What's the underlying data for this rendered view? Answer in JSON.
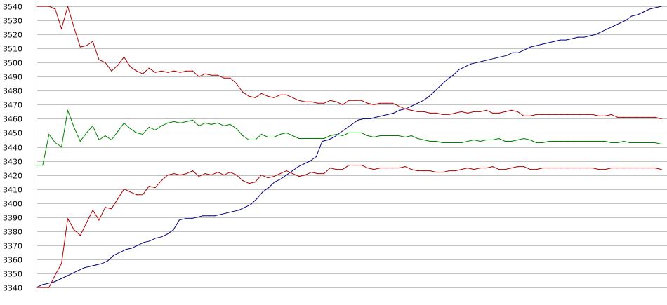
{
  "chart_data": {
    "type": "line",
    "title": "",
    "xlabel": "",
    "ylabel": "",
    "ylim": [
      3340,
      3540
    ],
    "yticks": [
      3340,
      3350,
      3360,
      3370,
      3380,
      3390,
      3400,
      3410,
      3420,
      3430,
      3440,
      3450,
      3460,
      3470,
      3480,
      3490,
      3500,
      3510,
      3520,
      3530,
      3540
    ],
    "grid": true,
    "legend": "none",
    "series": [
      {
        "color": "#000080",
        "values": [
          3340,
          3342,
          3343,
          3344,
          3346,
          3348,
          3350,
          3352,
          3354,
          3355,
          3356,
          3357,
          3359,
          3363,
          3365,
          3367,
          3368,
          3370,
          3372,
          3373,
          3375,
          3376,
          3378,
          3381,
          3388,
          3389,
          3389,
          3390,
          3391,
          3391,
          3391,
          3392,
          3393,
          3394,
          3395,
          3397,
          3399,
          3403,
          3408,
          3411,
          3415,
          3417,
          3420,
          3423,
          3426,
          3428,
          3430,
          3433,
          3444,
          3445,
          3447,
          3450,
          3453,
          3456,
          3459,
          3460,
          3460,
          3461,
          3462,
          3463,
          3464,
          3466,
          3467,
          3469,
          3471,
          3473,
          3476,
          3480,
          3484,
          3488,
          3491,
          3495,
          3497,
          3499,
          3500,
          3501,
          3502,
          3503,
          3504,
          3505,
          3507,
          3507,
          3509,
          3511,
          3512,
          3513,
          3514,
          3515,
          3516,
          3516,
          3517,
          3518,
          3518,
          3519,
          3520,
          3522,
          3524,
          3526,
          3528,
          3530,
          3533,
          3534,
          3536,
          3538,
          3539,
          3540
        ]
      },
      {
        "color": "#aa0000",
        "values": [
          3540,
          3540,
          3540,
          3538,
          3524,
          3540,
          3525,
          3511,
          3512,
          3515,
          3502,
          3500,
          3494,
          3498,
          3504,
          3497,
          3494,
          3492,
          3496,
          3493,
          3494,
          3493,
          3494,
          3493,
          3494,
          3494,
          3490,
          3492,
          3491,
          3491,
          3489,
          3489,
          3485,
          3479,
          3476,
          3475,
          3478,
          3476,
          3475,
          3477,
          3477,
          3475,
          3473,
          3472,
          3472,
          3471,
          3471,
          3473,
          3472,
          3470,
          3473,
          3473,
          3473,
          3471,
          3470,
          3471,
          3471,
          3471,
          3469,
          3467,
          3466,
          3465,
          3465,
          3464,
          3464,
          3463,
          3463,
          3464,
          3465,
          3464,
          3465,
          3465,
          3466,
          3464,
          3464,
          3465,
          3466,
          3465,
          3462,
          3462,
          3463,
          3463,
          3463,
          3463,
          3463,
          3463,
          3463,
          3463,
          3463,
          3463,
          3462,
          3462,
          3463,
          3461,
          3461,
          3461,
          3461,
          3461,
          3461,
          3461,
          3460
        ]
      },
      {
        "color": "#008000",
        "values": [
          3427,
          3427,
          3449,
          3443,
          3440,
          3466,
          3454,
          3444,
          3450,
          3455,
          3445,
          3448,
          3445,
          3451,
          3457,
          3453,
          3450,
          3449,
          3454,
          3452,
          3455,
          3457,
          3458,
          3457,
          3458,
          3459,
          3455,
          3457,
          3456,
          3457,
          3455,
          3456,
          3453,
          3448,
          3445,
          3445,
          3449,
          3447,
          3447,
          3449,
          3450,
          3448,
          3446,
          3446,
          3446,
          3446,
          3446,
          3448,
          3449,
          3448,
          3450,
          3450,
          3450,
          3448,
          3447,
          3448,
          3448,
          3448,
          3448,
          3447,
          3448,
          3446,
          3445,
          3444,
          3444,
          3443,
          3443,
          3443,
          3443,
          3444,
          3445,
          3444,
          3445,
          3445,
          3446,
          3444,
          3444,
          3445,
          3446,
          3445,
          3443,
          3443,
          3444,
          3444,
          3444,
          3444,
          3444,
          3444,
          3444,
          3444,
          3444,
          3444,
          3443,
          3443,
          3444,
          3443,
          3443,
          3443,
          3443,
          3443,
          3442
        ]
      },
      {
        "color": "#aa0000",
        "values": [
          3340,
          3340,
          3340,
          3349,
          3357,
          3389,
          3381,
          3377,
          3386,
          3395,
          3388,
          3397,
          3396,
          3403,
          3410,
          3408,
          3406,
          3406,
          3412,
          3411,
          3416,
          3420,
          3421,
          3420,
          3421,
          3423,
          3419,
          3421,
          3420,
          3422,
          3420,
          3422,
          3420,
          3416,
          3414,
          3415,
          3420,
          3418,
          3419,
          3421,
          3423,
          3421,
          3419,
          3420,
          3422,
          3421,
          3421,
          3425,
          3424,
          3424,
          3427,
          3427,
          3427,
          3425,
          3424,
          3425,
          3425,
          3425,
          3425,
          3426,
          3424,
          3423,
          3423,
          3423,
          3422,
          3422,
          3423,
          3423,
          3424,
          3425,
          3424,
          3425,
          3425,
          3426,
          3424,
          3424,
          3425,
          3426,
          3426,
          3424,
          3424,
          3425,
          3425,
          3425,
          3425,
          3425,
          3425,
          3425,
          3425,
          3425,
          3424,
          3424,
          3425,
          3425,
          3425,
          3425,
          3425,
          3425,
          3425,
          3425,
          3424
        ]
      }
    ]
  }
}
